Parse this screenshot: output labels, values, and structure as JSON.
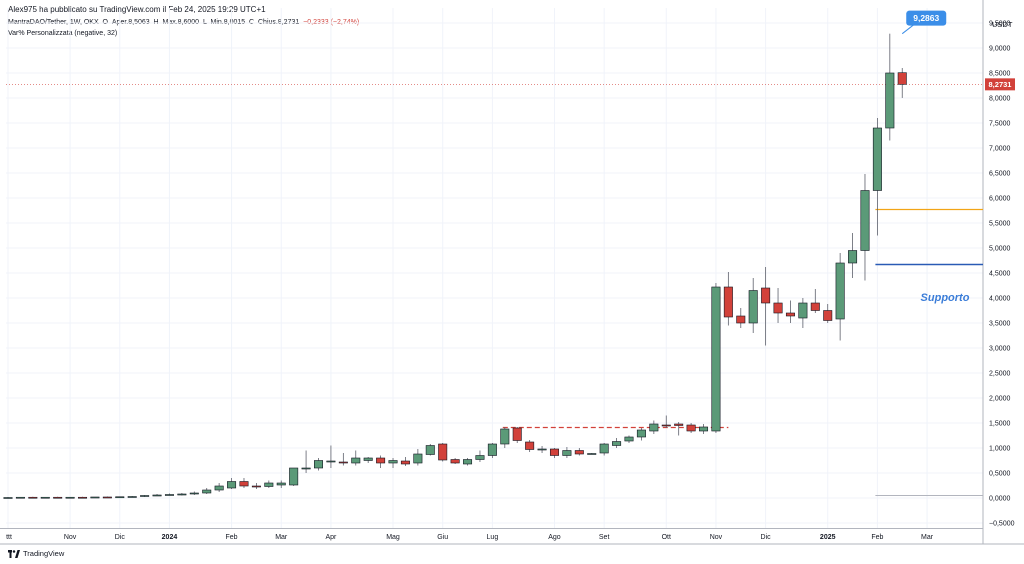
{
  "header": {
    "published": "Alex975 ha pubblicato su TradingView.com il Feb 24, 2025 19:29 UTC+1",
    "symbol": "MantraDAO/Tether, 1W, OKX",
    "open_label": "O",
    "open_value": "Aper.8,5063",
    "high_label": "H",
    "high_value": "Max.8,6000",
    "low_label": "L",
    "low_value": "Min.8,0015",
    "close_label": "C",
    "close_value": "Chius.8,2731",
    "change": "−0,2333 (−2,74%)",
    "indicator": "Var% Personalizzata (negative, 32)"
  },
  "footer": {
    "logo_text": "TradingView"
  },
  "colors": {
    "up": "#5b9a78",
    "down": "#d2413a",
    "wick": "#5d606b",
    "callout": "#3b8ee8",
    "support": "#2a5bb5",
    "orange": "#f2a516"
  },
  "chart_data": {
    "type": "candlestick",
    "unit": "USDT",
    "ylim": [
      -0.6,
      9.8
    ],
    "y_ticks": [
      "9,5000",
      "9,0000",
      "8,5000",
      "8,0000",
      "7,5000",
      "7,0000",
      "6,5000",
      "6,0000",
      "5,5000",
      "5,0000",
      "4,5000",
      "4,0000",
      "3,5000",
      "3,0000",
      "2,5000",
      "2,0000",
      "1,5000",
      "1,0000",
      "0,5000",
      "0,0000",
      "−0,5000"
    ],
    "y_tick_values": [
      9.5,
      9,
      8.5,
      8,
      7.5,
      7,
      6.5,
      6,
      5.5,
      5,
      4.5,
      4,
      3.5,
      3,
      2.5,
      2,
      1.5,
      1,
      0.5,
      0,
      -0.5
    ],
    "x_labels": [
      {
        "label": "ttt",
        "week": 0,
        "bold": false
      },
      {
        "label": "Nov",
        "week": 5,
        "bold": false
      },
      {
        "label": "Dic",
        "week": 9,
        "bold": false
      },
      {
        "label": "2024",
        "week": 13,
        "bold": true
      },
      {
        "label": "Feb",
        "week": 18,
        "bold": false
      },
      {
        "label": "Mar",
        "week": 22,
        "bold": false
      },
      {
        "label": "Apr",
        "week": 26,
        "bold": false
      },
      {
        "label": "Mag",
        "week": 31,
        "bold": false
      },
      {
        "label": "Giu",
        "week": 35,
        "bold": false
      },
      {
        "label": "Lug",
        "week": 39,
        "bold": false
      },
      {
        "label": "Ago",
        "week": 44,
        "bold": false
      },
      {
        "label": "Set",
        "week": 48,
        "bold": false
      },
      {
        "label": "Ott",
        "week": 53,
        "bold": false
      },
      {
        "label": "Nov",
        "week": 57,
        "bold": false
      },
      {
        "label": "Dic",
        "week": 61,
        "bold": false
      },
      {
        "label": "2025",
        "week": 66,
        "bold": true
      },
      {
        "label": "Feb",
        "week": 70,
        "bold": false
      },
      {
        "label": "Mar",
        "week": 74,
        "bold": false
      }
    ],
    "candles": [
      {
        "o": 0.01,
        "h": 0.02,
        "l": 0.0,
        "c": 0.01
      },
      {
        "o": 0.01,
        "h": 0.02,
        "l": 0.0,
        "c": 0.015
      },
      {
        "o": 0.015,
        "h": 0.025,
        "l": 0.005,
        "c": 0.01
      },
      {
        "o": 0.01,
        "h": 0.02,
        "l": 0.0,
        "c": 0.015
      },
      {
        "o": 0.015,
        "h": 0.025,
        "l": 0.005,
        "c": 0.01
      },
      {
        "o": 0.01,
        "h": 0.02,
        "l": 0.0,
        "c": 0.015
      },
      {
        "o": 0.015,
        "h": 0.025,
        "l": 0.005,
        "c": 0.01
      },
      {
        "o": 0.01,
        "h": 0.02,
        "l": 0.0,
        "c": 0.02
      },
      {
        "o": 0.02,
        "h": 0.03,
        "l": 0.01,
        "c": 0.015
      },
      {
        "o": 0.015,
        "h": 0.03,
        "l": 0.01,
        "c": 0.025
      },
      {
        "o": 0.025,
        "h": 0.04,
        "l": 0.015,
        "c": 0.03
      },
      {
        "o": 0.03,
        "h": 0.06,
        "l": 0.02,
        "c": 0.05
      },
      {
        "o": 0.05,
        "h": 0.08,
        "l": 0.04,
        "c": 0.06
      },
      {
        "o": 0.06,
        "h": 0.09,
        "l": 0.05,
        "c": 0.07
      },
      {
        "o": 0.07,
        "h": 0.1,
        "l": 0.05,
        "c": 0.08
      },
      {
        "o": 0.08,
        "h": 0.13,
        "l": 0.06,
        "c": 0.1
      },
      {
        "o": 0.1,
        "h": 0.2,
        "l": 0.08,
        "c": 0.16
      },
      {
        "o": 0.16,
        "h": 0.3,
        "l": 0.12,
        "c": 0.24
      },
      {
        "o": 0.2,
        "h": 0.4,
        "l": 0.18,
        "c": 0.33
      },
      {
        "o": 0.33,
        "h": 0.4,
        "l": 0.2,
        "c": 0.24
      },
      {
        "o": 0.24,
        "h": 0.3,
        "l": 0.18,
        "c": 0.23
      },
      {
        "o": 0.23,
        "h": 0.35,
        "l": 0.2,
        "c": 0.3
      },
      {
        "o": 0.26,
        "h": 0.35,
        "l": 0.2,
        "c": 0.3
      },
      {
        "o": 0.26,
        "h": 0.6,
        "l": 0.24,
        "c": 0.6
      },
      {
        "o": 0.58,
        "h": 0.95,
        "l": 0.5,
        "c": 0.6
      },
      {
        "o": 0.6,
        "h": 0.8,
        "l": 0.55,
        "c": 0.75
      },
      {
        "o": 0.72,
        "h": 1.05,
        "l": 0.6,
        "c": 0.74
      },
      {
        "o": 0.72,
        "h": 0.9,
        "l": 0.65,
        "c": 0.7
      },
      {
        "o": 0.7,
        "h": 0.95,
        "l": 0.65,
        "c": 0.8
      },
      {
        "o": 0.75,
        "h": 0.82,
        "l": 0.7,
        "c": 0.8
      },
      {
        "o": 0.8,
        "h": 0.85,
        "l": 0.6,
        "c": 0.7
      },
      {
        "o": 0.7,
        "h": 0.8,
        "l": 0.6,
        "c": 0.75
      },
      {
        "o": 0.74,
        "h": 0.82,
        "l": 0.64,
        "c": 0.68
      },
      {
        "o": 0.7,
        "h": 0.98,
        "l": 0.65,
        "c": 0.88
      },
      {
        "o": 0.87,
        "h": 1.08,
        "l": 0.85,
        "c": 1.05
      },
      {
        "o": 1.08,
        "h": 1.1,
        "l": 0.73,
        "c": 0.76
      },
      {
        "o": 0.77,
        "h": 0.8,
        "l": 0.68,
        "c": 0.7
      },
      {
        "o": 0.68,
        "h": 0.8,
        "l": 0.65,
        "c": 0.77
      },
      {
        "o": 0.77,
        "h": 0.95,
        "l": 0.72,
        "c": 0.85
      },
      {
        "o": 0.85,
        "h": 1.1,
        "l": 0.8,
        "c": 1.08
      },
      {
        "o": 1.08,
        "h": 1.42,
        "l": 1.0,
        "c": 1.38
      },
      {
        "o": 1.4,
        "h": 1.42,
        "l": 1.1,
        "c": 1.15
      },
      {
        "o": 1.12,
        "h": 1.16,
        "l": 0.92,
        "c": 0.97
      },
      {
        "o": 0.97,
        "h": 1.04,
        "l": 0.9,
        "c": 0.98
      },
      {
        "o": 0.98,
        "h": 1.0,
        "l": 0.8,
        "c": 0.85
      },
      {
        "o": 0.85,
        "h": 1.02,
        "l": 0.8,
        "c": 0.95
      },
      {
        "o": 0.95,
        "h": 1.0,
        "l": 0.85,
        "c": 0.88
      },
      {
        "o": 0.88,
        "h": 0.9,
        "l": 0.88,
        "c": 0.89
      },
      {
        "o": 0.9,
        "h": 1.1,
        "l": 0.85,
        "c": 1.08
      },
      {
        "o": 1.05,
        "h": 1.2,
        "l": 1.0,
        "c": 1.13
      },
      {
        "o": 1.14,
        "h": 1.25,
        "l": 1.1,
        "c": 1.22
      },
      {
        "o": 1.22,
        "h": 1.4,
        "l": 1.15,
        "c": 1.36
      },
      {
        "o": 1.34,
        "h": 1.55,
        "l": 1.28,
        "c": 1.48
      },
      {
        "o": 1.46,
        "h": 1.65,
        "l": 1.4,
        "c": 1.45
      },
      {
        "o": 1.48,
        "h": 1.52,
        "l": 1.25,
        "c": 1.45
      },
      {
        "o": 1.46,
        "h": 1.5,
        "l": 1.3,
        "c": 1.34
      },
      {
        "o": 1.34,
        "h": 1.48,
        "l": 1.28,
        "c": 1.42
      },
      {
        "o": 1.34,
        "h": 4.3,
        "l": 1.3,
        "c": 4.22
      },
      {
        "o": 4.22,
        "h": 4.52,
        "l": 3.45,
        "c": 3.62
      },
      {
        "o": 3.64,
        "h": 3.8,
        "l": 3.4,
        "c": 3.5
      },
      {
        "o": 3.5,
        "h": 4.4,
        "l": 3.3,
        "c": 4.15
      },
      {
        "o": 4.2,
        "h": 4.62,
        "l": 3.05,
        "c": 3.9
      },
      {
        "o": 3.9,
        "h": 4.2,
        "l": 3.5,
        "c": 3.7
      },
      {
        "o": 3.7,
        "h": 3.95,
        "l": 3.5,
        "c": 3.64
      },
      {
        "o": 3.6,
        "h": 4.0,
        "l": 3.4,
        "c": 3.9
      },
      {
        "o": 3.9,
        "h": 4.18,
        "l": 3.7,
        "c": 3.75
      },
      {
        "o": 3.75,
        "h": 3.88,
        "l": 3.5,
        "c": 3.55
      },
      {
        "o": 3.58,
        "h": 4.9,
        "l": 3.15,
        "c": 4.7
      },
      {
        "o": 4.7,
        "h": 5.3,
        "l": 4.4,
        "c": 4.95
      },
      {
        "o": 4.95,
        "h": 6.48,
        "l": 4.35,
        "c": 6.15
      },
      {
        "o": 6.15,
        "h": 7.6,
        "l": 5.25,
        "c": 7.4
      },
      {
        "o": 7.4,
        "h": 9.2863,
        "l": 7.15,
        "c": 8.5
      },
      {
        "o": 8.5063,
        "h": 8.6,
        "l": 8.0015,
        "c": 8.2731
      }
    ],
    "callout": {
      "label": "9,2863",
      "value": 9.2863,
      "week": 72
    },
    "last_price": {
      "label": "8,2731",
      "value": 8.2731
    },
    "lines": [
      {
        "name": "orange-level",
        "value": 5.77,
        "from_week": 70,
        "to_week": 79
      },
      {
        "name": "support-level",
        "value": 4.67,
        "from_week": 70,
        "to_week": 79
      },
      {
        "name": "zero-level",
        "value": 0.05,
        "from_week": 70,
        "to_week": 79
      },
      {
        "name": "red-dashed-level",
        "value": 1.41,
        "from_week": 40,
        "to_week": 58
      }
    ],
    "annotation": "Supporto"
  }
}
